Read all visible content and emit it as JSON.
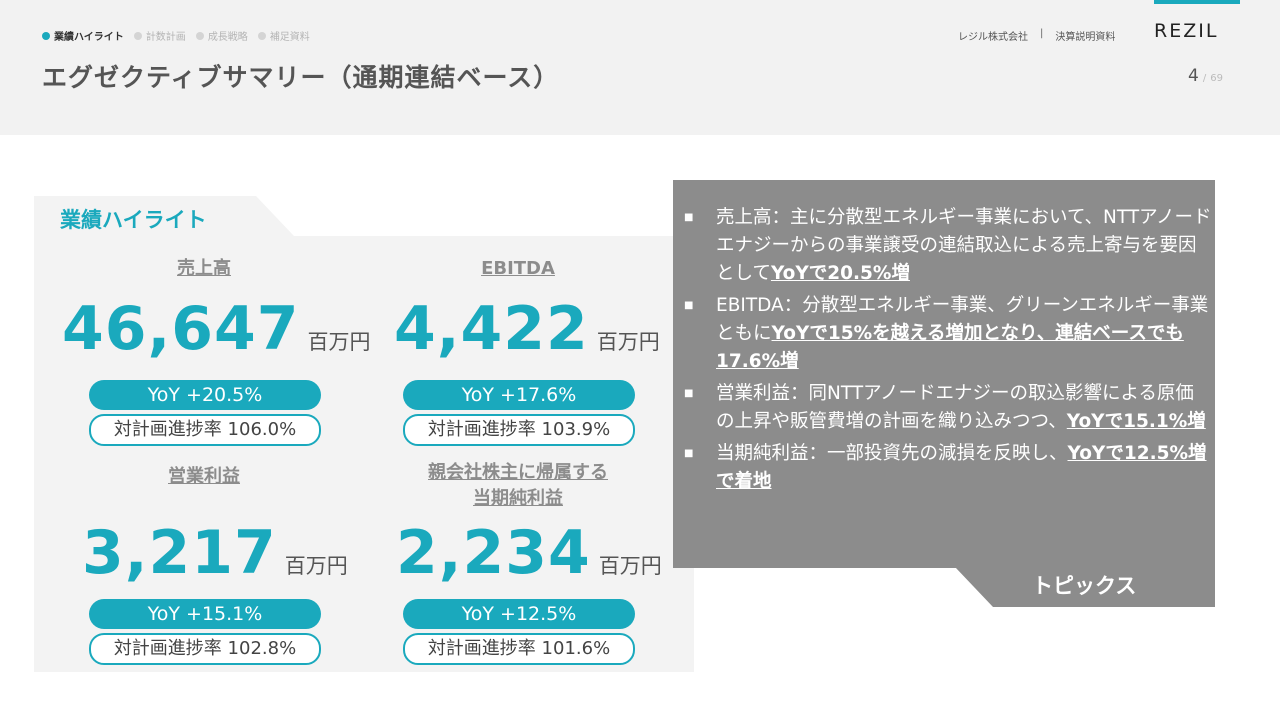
{
  "nav": {
    "items": [
      "業績ハイライト",
      "計数計画",
      "成長戦略",
      "補足資料"
    ],
    "active_index": 0
  },
  "header": {
    "title": "エグゼクティブサマリー（通期連結ベース）",
    "company": "レジル株式会社",
    "separator": "|",
    "doc_type": "決算説明資料",
    "logo": "REZIL",
    "page_current": "4",
    "page_separator": "/",
    "page_total": "69"
  },
  "highlights": {
    "title": "業績ハイライト",
    "metrics": [
      {
        "label": "売上高",
        "value": "46,647",
        "unit": "百万円",
        "yoy": "YoY +20.5%",
        "plan": "対計画進捗率 106.0%"
      },
      {
        "label": "EBITDA",
        "value": "4,422",
        "unit": "百万円",
        "yoy": "YoY +17.6%",
        "plan": "対計画進捗率 103.9%"
      },
      {
        "label": "営業利益",
        "value": "3,217",
        "unit": "百万円",
        "yoy": "YoY +15.1%",
        "plan": "対計画進捗率 102.8%"
      },
      {
        "label_line1": "親会社株主に帰属する",
        "label_line2": "当期純利益",
        "value": "2,234",
        "unit": "百万円",
        "yoy": "YoY +12.5%",
        "plan": "対計画進捗率 101.6%"
      }
    ]
  },
  "topics": {
    "title": "トピックス",
    "bullet": "■",
    "items": [
      {
        "text": "売上高：主に分散型エネルギー事業において、NTTアノードエナジーからの事業譲受の連結取込による売上寄与を要因として",
        "emphasis": "YoYで20.5%増",
        "tail": ""
      },
      {
        "text": "EBITDA：分散型エネルギー事業、グリーンエネルギー事業ともに",
        "emphasis": "YoYで15%を越える増加となり、連結ベースでも17.6%増",
        "tail": ""
      },
      {
        "text": "営業利益：同NTTアノードエナジーの取込影響による原価の上昇や販管費増の計画を織り込みつつ、",
        "emphasis": "YoYで15.1%増",
        "tail": ""
      },
      {
        "text": "当期純利益：一部投資先の減損を反映し、",
        "emphasis": "YoYで12.5%増で着地",
        "tail": ""
      }
    ]
  },
  "colors": {
    "accent": "#1aa9bd",
    "topics_bg": "#8c8c8c",
    "panel_bg": "#f3f3f3",
    "header_bg": "#f2f2f2"
  }
}
